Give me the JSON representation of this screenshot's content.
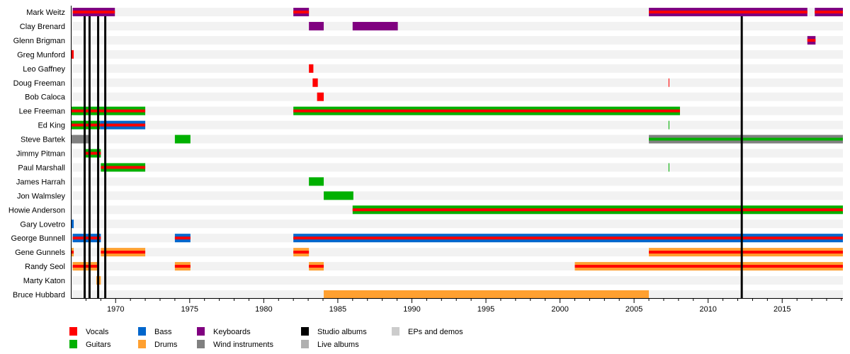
{
  "chart_data": {
    "type": "timeline",
    "title": "",
    "xlim": [
      1967,
      2019.1
    ],
    "x_ticks": [
      1970,
      1975,
      1980,
      1985,
      1990,
      1995,
      2000,
      2005,
      2010,
      2015
    ],
    "colors": {
      "vocals": "#ff0000",
      "guitars": "#00b000",
      "bass": "#0066cc",
      "drums": "#ffa030",
      "keyboards": "#800080",
      "wind": "#808080",
      "studio": "#000000",
      "live": "#b0b0b0",
      "eps": "#cccccc",
      "band": "#f2f2f2"
    },
    "members": [
      {
        "name": "Mark Weitz",
        "bars": [
          [
            1967.1,
            1969.95,
            "keyboards",
            "vocals"
          ],
          [
            1982,
            1983.05,
            "keyboards",
            "vocals"
          ],
          [
            2006,
            2016.7,
            "keyboards",
            "vocals"
          ],
          [
            2017.2,
            2019.1,
            "keyboards",
            "vocals"
          ]
        ]
      },
      {
        "name": "Clay Brenard",
        "bars": [
          [
            1983.05,
            1984.05,
            "keyboards",
            null
          ],
          [
            1986,
            1989.05,
            "keyboards",
            null
          ]
        ]
      },
      {
        "name": "Glenn Brigman",
        "bars": [
          [
            2016.7,
            2017.25,
            "keyboards",
            "vocals"
          ]
        ]
      },
      {
        "name": "Greg Munford",
        "bars": [
          [
            1967,
            1967.17,
            "vocals",
            null
          ]
        ]
      },
      {
        "name": "Leo Gaffney",
        "bars": [
          [
            1983.05,
            1983.35,
            "vocals",
            null
          ]
        ]
      },
      {
        "name": "Doug Freeman",
        "bars": [
          [
            1983.3,
            1983.65,
            "vocals",
            null
          ],
          [
            2007.33,
            2007.38,
            "vocals",
            null
          ]
        ]
      },
      {
        "name": "Bob Caloca",
        "bars": [
          [
            1983.6,
            1984.05,
            "vocals",
            null
          ]
        ]
      },
      {
        "name": "Lee Freeman",
        "bars": [
          [
            1967,
            1972,
            "guitars",
            "vocals"
          ],
          [
            1982,
            2008.1,
            "guitars",
            "vocals"
          ]
        ]
      },
      {
        "name": "Ed King",
        "bars": [
          [
            1967,
            1968.95,
            "guitars",
            "vocals"
          ],
          [
            1968.95,
            1972,
            "bass",
            "vocals"
          ],
          [
            2007.33,
            2007.38,
            "guitars",
            null
          ]
        ]
      },
      {
        "name": "Steve Bartek",
        "bars": [
          [
            1967,
            1968.25,
            "wind",
            null
          ],
          [
            1974,
            1975.05,
            "guitars",
            null
          ],
          [
            2006,
            2019.1,
            "wind",
            "guitars"
          ]
        ]
      },
      {
        "name": "Jimmy Pitman",
        "bars": [
          [
            1967.9,
            1969,
            "guitars",
            "vocals"
          ]
        ]
      },
      {
        "name": "Paul Marshall",
        "bars": [
          [
            1969,
            1972,
            "guitars",
            "vocals"
          ],
          [
            2007.33,
            2007.38,
            "guitars",
            null
          ]
        ]
      },
      {
        "name": "James Harrah",
        "bars": [
          [
            1983.05,
            1984.05,
            "guitars",
            null
          ]
        ]
      },
      {
        "name": "Jon Walmsley",
        "bars": [
          [
            1984.05,
            1986.05,
            "guitars",
            null
          ]
        ]
      },
      {
        "name": "Howie Anderson",
        "bars": [
          [
            1986,
            2019.1,
            "guitars",
            "vocals"
          ]
        ]
      },
      {
        "name": "Gary Lovetro",
        "bars": [
          [
            1967,
            1967.17,
            "bass",
            null
          ]
        ]
      },
      {
        "name": "George Bunnell",
        "bars": [
          [
            1967.1,
            1969,
            "bass",
            "vocals"
          ],
          [
            1974,
            1975.05,
            "bass",
            "vocals"
          ],
          [
            1982,
            2019.1,
            "bass",
            "vocals"
          ]
        ]
      },
      {
        "name": "Gene Gunnels",
        "bars": [
          [
            1967,
            1967.17,
            "drums",
            "vocals"
          ],
          [
            1969,
            1972,
            "drums",
            "vocals"
          ],
          [
            1982,
            1983.05,
            "drums",
            "vocals"
          ],
          [
            2006,
            2019.1,
            "drums",
            "vocals"
          ]
        ]
      },
      {
        "name": "Randy Seol",
        "bars": [
          [
            1967.1,
            1968.75,
            "drums",
            "vocals"
          ],
          [
            1974,
            1975.05,
            "drums",
            "vocals"
          ],
          [
            1983.05,
            1984.05,
            "drums",
            "vocals"
          ],
          [
            2001,
            2019.1,
            "drums",
            "vocals"
          ]
        ]
      },
      {
        "name": "Marty Katon",
        "bars": [
          [
            1968.7,
            1969,
            "drums",
            null
          ]
        ]
      },
      {
        "name": "Bruce Hubbard",
        "bars": [
          [
            1984.05,
            2006,
            "drums",
            null
          ]
        ]
      }
    ],
    "studio_albums": [
      1967.91,
      1968.24,
      1968.82,
      1969.3,
      2012.27
    ],
    "legend": [
      {
        "label": "Vocals",
        "key": "vocals"
      },
      {
        "label": "Guitars",
        "key": "guitars"
      },
      {
        "label": "Bass",
        "key": "bass"
      },
      {
        "label": "Drums",
        "key": "drums"
      },
      {
        "label": "Keyboards",
        "key": "keyboards"
      },
      {
        "label": "Wind instruments",
        "key": "wind"
      },
      {
        "label": "Studio albums",
        "key": "studio"
      },
      {
        "label": "Live albums",
        "key": "live"
      },
      {
        "label": "EPs and demos",
        "key": "eps"
      }
    ],
    "legend_placement": "bottom"
  }
}
